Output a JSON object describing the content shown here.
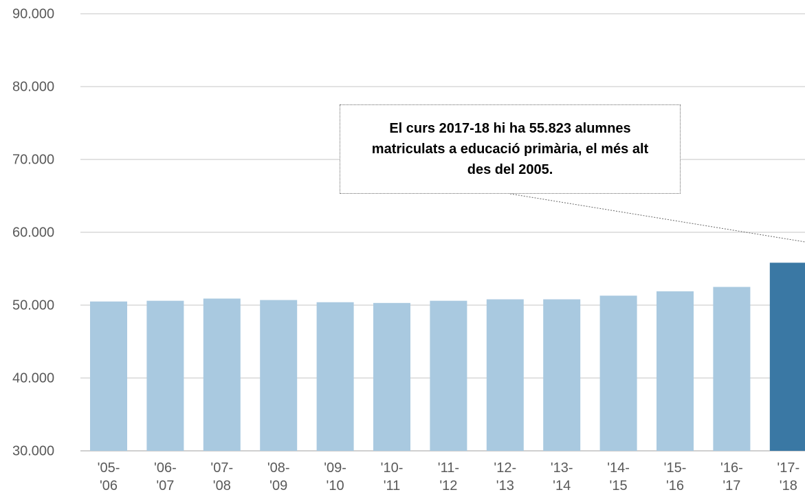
{
  "chart_data": {
    "type": "bar",
    "categories": [
      "'05- '06",
      "'06- '07",
      "'07- '08",
      "'08- '09",
      "'09- '10",
      "'10- '11",
      "'11- '12",
      "'12- '13",
      "'13- '14",
      "'14- '15",
      "'15- '16",
      "'16- '17",
      "'17- '18"
    ],
    "values": [
      50500,
      50600,
      50900,
      50700,
      50400,
      50300,
      50600,
      50800,
      50800,
      51300,
      51900,
      52500,
      55823
    ],
    "colors": [
      "#a9c9e0",
      "#a9c9e0",
      "#a9c9e0",
      "#a9c9e0",
      "#a9c9e0",
      "#a9c9e0",
      "#a9c9e0",
      "#a9c9e0",
      "#a9c9e0",
      "#a9c9e0",
      "#a9c9e0",
      "#a9c9e0",
      "#3a78a4"
    ],
    "ylim": [
      30000,
      90000
    ],
    "yticks": [
      {
        "value": 30000,
        "label": "30.000"
      },
      {
        "value": 40000,
        "label": "40.000"
      },
      {
        "value": 50000,
        "label": "50.000"
      },
      {
        "value": 60000,
        "label": "60.000"
      },
      {
        "value": 70000,
        "label": "70.000"
      },
      {
        "value": 80000,
        "label": "80.000"
      },
      {
        "value": 90000,
        "label": "90.000"
      }
    ],
    "grid": true,
    "annotation": "El curs 2017-18 hi ha 55.823 alumnes matriculats a educació primària, el més alt des del 2005."
  }
}
